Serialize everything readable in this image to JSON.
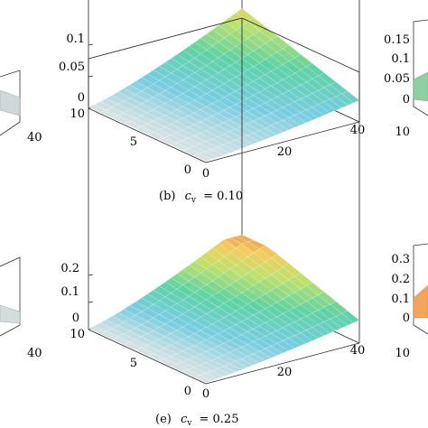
{
  "chart_data": [
    {
      "type": "surface",
      "position": "top-left-partial",
      "caption": "",
      "zlim": [
        0,
        0.1
      ],
      "x_ticks": [],
      "y_ticks": [],
      "z_ticks": [],
      "x_tick_labels": [
        "40"
      ],
      "y_tick_labels": [],
      "z_tick_labels": [],
      "colormap": "turbo-like",
      "grid": true
    },
    {
      "type": "surface",
      "position": "top-center",
      "caption": "(b)  c_v = 0.10",
      "caption_label": "(b)",
      "caption_var": "c",
      "caption_sub": "v",
      "caption_eq": "= 0.10",
      "xlim": [
        0,
        40
      ],
      "ylim": [
        0,
        10
      ],
      "zlim": [
        0,
        0.1
      ],
      "x_tick_labels": [
        "0",
        "20",
        "40"
      ],
      "y_tick_labels": [
        "0",
        "5",
        "10"
      ],
      "z_tick_labels": [
        "0",
        "0.05",
        "0.1"
      ],
      "surface_peak": 0.1,
      "colormap": "turbo-like",
      "grid": true
    },
    {
      "type": "surface",
      "position": "top-right-partial",
      "caption": "",
      "zlim": [
        0,
        0.15
      ],
      "z_tick_labels": [
        "0",
        "0.05",
        "0.1",
        "0.15"
      ],
      "colormap": "turbo-like",
      "grid": true
    },
    {
      "type": "surface",
      "position": "bottom-left-partial",
      "caption": "",
      "x_tick_labels": [
        "40"
      ],
      "colormap": "turbo-like",
      "grid": true
    },
    {
      "type": "surface",
      "position": "bottom-center",
      "caption": "(e)  c_v = 0.25",
      "caption_label": "(e)",
      "caption_var": "c",
      "caption_sub": "v",
      "caption_eq": "= 0.25",
      "xlim": [
        0,
        40
      ],
      "ylim": [
        0,
        10
      ],
      "zlim": [
        0,
        0.2
      ],
      "x_tick_labels": [
        "0",
        "20",
        "40"
      ],
      "y_tick_labels": [
        "0",
        "5",
        "10"
      ],
      "z_tick_labels": [
        "0",
        "0.1",
        "0.2"
      ],
      "surface_peak": 0.25,
      "colormap": "turbo-like",
      "grid": true
    },
    {
      "type": "surface",
      "position": "bottom-right-partial",
      "caption": "",
      "zlim": [
        0,
        0.3
      ],
      "z_tick_labels": [
        "0",
        "0.1",
        "0.2",
        "0.3"
      ],
      "colormap": "turbo-like",
      "grid": true
    }
  ]
}
